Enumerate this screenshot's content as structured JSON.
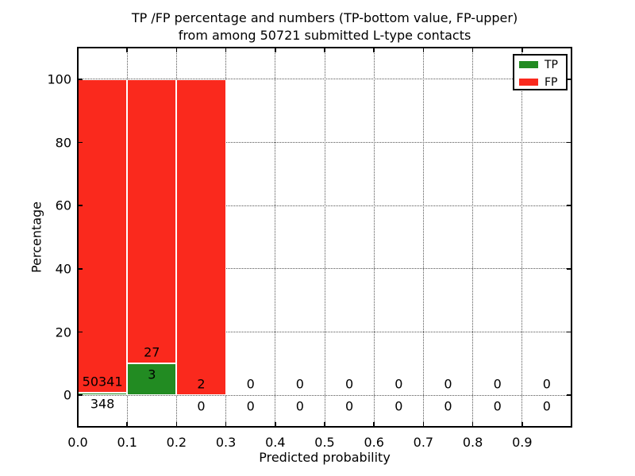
{
  "figure": {
    "title_line1": "TP /FP percentage and numbers (TP-bottom value, FP-upper)",
    "title_line2": "from among 50721 submitted L-type contacts"
  },
  "chart_data": {
    "type": "bar",
    "stacked": true,
    "title": "TP /FP percentage and numbers (TP-bottom value, FP-upper) from among 50721 submitted L-type contacts",
    "xlabel": "Predicted probability",
    "ylabel": "Percentage",
    "xlim": [
      0.0,
      1.0
    ],
    "ylim": [
      -10,
      110
    ],
    "grid": "dotted both axes",
    "legend_position": "upper-right",
    "total_submitted_contacts": 50721,
    "bin_edges": [
      0.0,
      0.1,
      0.2,
      0.3,
      0.4,
      0.5,
      0.6,
      0.7,
      0.8,
      0.9,
      1.0
    ],
    "xtick_labels": [
      "0.0",
      "0.1",
      "0.2",
      "0.3",
      "0.4",
      "0.5",
      "0.6",
      "0.7",
      "0.8",
      "0.9"
    ],
    "ytick_labels": [
      "0",
      "20",
      "40",
      "60",
      "80",
      "100"
    ],
    "colors": {
      "tp": "#228b22",
      "fp": "#fa291d",
      "grid": "#555555"
    },
    "series": [
      {
        "name": "TP",
        "color_key": "tp",
        "counts": [
          348,
          3,
          0,
          0,
          0,
          0,
          0,
          0,
          0,
          0
        ],
        "pct": [
          0.69,
          10,
          0,
          0,
          0,
          0,
          0,
          0,
          0,
          0
        ]
      },
      {
        "name": "FP",
        "color_key": "fp",
        "counts": [
          50341,
          27,
          2,
          0,
          0,
          0,
          0,
          0,
          0,
          0
        ],
        "pct": [
          99.31,
          90,
          100,
          0,
          0,
          0,
          0,
          0,
          0,
          0
        ]
      }
    ],
    "count_label_note": "FP count printed above TP bar top, TP count printed below TP bar top, per bin"
  }
}
